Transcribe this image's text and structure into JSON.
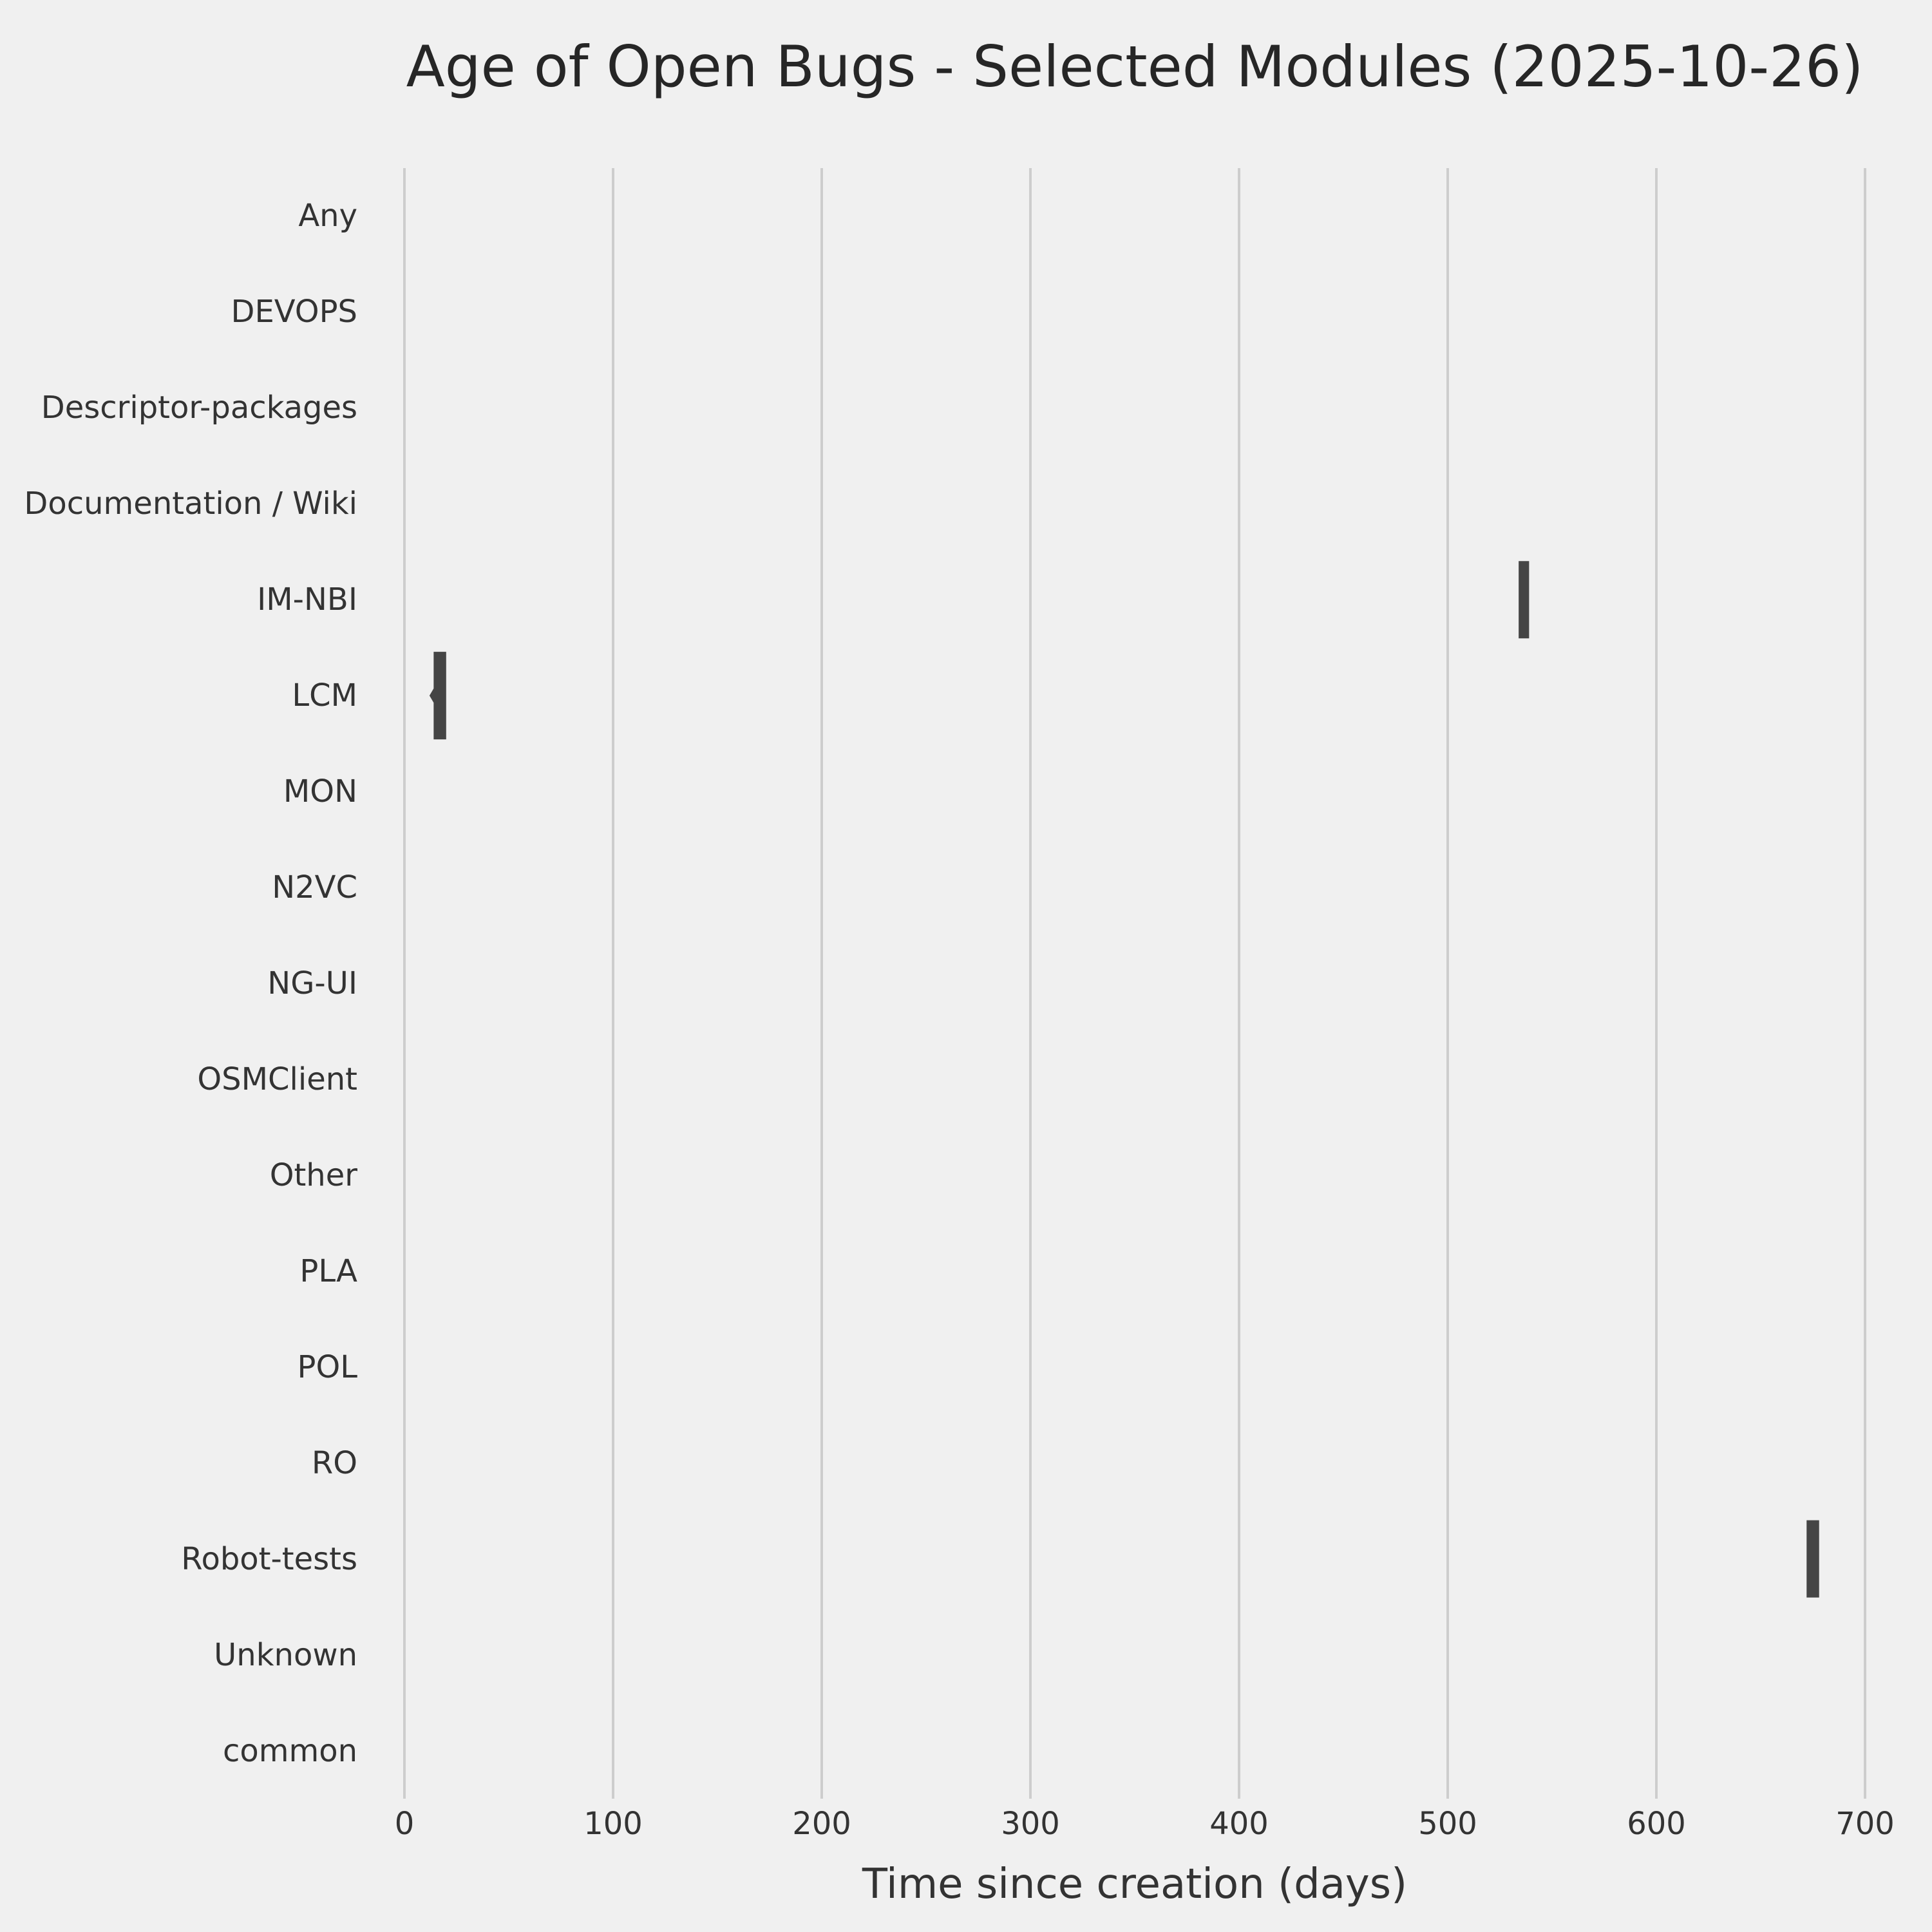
{
  "figure": {
    "title": "Age of Open Bugs - Selected Modules (2025-10-26)"
  },
  "colors": {
    "background": "#f0f0f0",
    "grid": "#cdcdcd",
    "violin": "#454545",
    "title_text": "#262626",
    "label_text": "#333333"
  },
  "chart_data": {
    "type": "violin",
    "orientation": "horizontal",
    "title": "Age of Open Bugs - Selected Modules (2025-10-26)",
    "xlabel": "Time since creation (days)",
    "ylabel": "",
    "categories": [
      "Any",
      "DEVOPS",
      "Descriptor-packages",
      "Documentation / Wiki",
      "IM-NBI",
      "LCM",
      "MON",
      "N2VC",
      "NG-UI",
      "OSMClient",
      "Other",
      "PLA",
      "POL",
      "RO",
      "Robot-tests",
      "Unknown",
      "common"
    ],
    "x_tick_labels": [
      "0",
      "100",
      "200",
      "300",
      "400",
      "500",
      "600",
      "700"
    ],
    "x_tick_values": [
      0,
      100,
      200,
      300,
      400,
      500,
      600,
      700
    ],
    "xlim": [
      -20,
      710
    ],
    "grid": true,
    "legend": null,
    "series": [
      {
        "module": "IM-NBI",
        "min_days": 534,
        "max_days": 539,
        "tip_days": null
      },
      {
        "module": "LCM",
        "min_days": 14,
        "max_days": 20,
        "tip_days": 12
      },
      {
        "module": "Robot-tests",
        "min_days": 672,
        "max_days": 678,
        "tip_days": null
      }
    ]
  }
}
